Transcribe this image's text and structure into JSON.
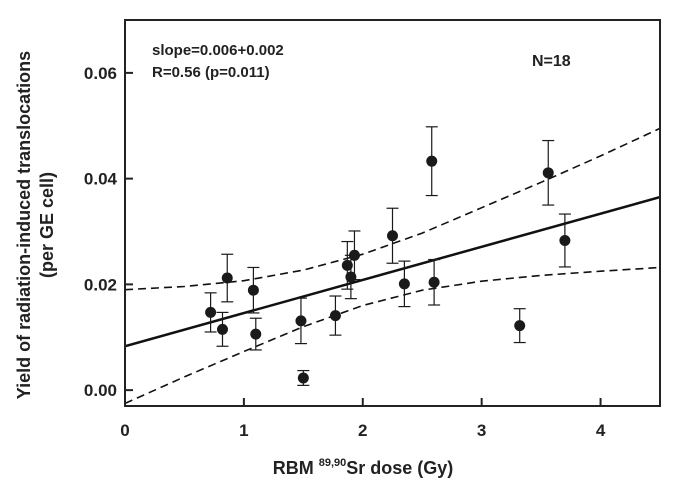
{
  "chart_data": {
    "type": "scatter",
    "xlabel": {
      "prefix": "RBM ",
      "superscript": "89,90",
      "suffix": "Sr dose (Gy)"
    },
    "ylabel": {
      "line1": "Yield of radiation-induced translocations",
      "line2": "(per GE cell)"
    },
    "xlim": [
      0,
      4.5
    ],
    "ylim": [
      -0.003,
      0.07
    ],
    "xticks": [
      0,
      1,
      2,
      3,
      4
    ],
    "xtick_labels": [
      "0",
      "1",
      "2",
      "3",
      "4"
    ],
    "yticks": [
      0.0,
      0.02,
      0.04,
      0.06
    ],
    "ytick_labels": [
      "0.00",
      "0.02",
      "0.04",
      "0.06"
    ],
    "annotations": {
      "slope": "slope=0.006+0.002",
      "r": "R=0.56 (p=0.011)",
      "n": "N=18"
    },
    "points": [
      {
        "x": 0.72,
        "y": 0.0147,
        "err": 0.0037
      },
      {
        "x": 0.82,
        "y": 0.0115,
        "err": 0.0032
      },
      {
        "x": 0.86,
        "y": 0.0212,
        "err": 0.0045
      },
      {
        "x": 1.08,
        "y": 0.0189,
        "err": 0.0043
      },
      {
        "x": 1.1,
        "y": 0.0106,
        "err": 0.003
      },
      {
        "x": 1.48,
        "y": 0.0131,
        "err": 0.0043
      },
      {
        "x": 1.5,
        "y": 0.0023,
        "err": 0.0014
      },
      {
        "x": 1.77,
        "y": 0.0141,
        "err": 0.0037
      },
      {
        "x": 1.87,
        "y": 0.0236,
        "err": 0.0045
      },
      {
        "x": 1.9,
        "y": 0.0214,
        "err": 0.0041
      },
      {
        "x": 1.93,
        "y": 0.0255,
        "err": 0.0046
      },
      {
        "x": 2.25,
        "y": 0.0292,
        "err": 0.0052
      },
      {
        "x": 2.35,
        "y": 0.0201,
        "err": 0.0043
      },
      {
        "x": 2.58,
        "y": 0.0433,
        "err": 0.0065
      },
      {
        "x": 2.6,
        "y": 0.0204,
        "err": 0.0043
      },
      {
        "x": 3.32,
        "y": 0.0122,
        "err": 0.0032
      },
      {
        "x": 3.56,
        "y": 0.0411,
        "err": 0.0061
      },
      {
        "x": 3.7,
        "y": 0.0283,
        "err": 0.005
      }
    ],
    "fit_line": {
      "x": [
        0,
        4.5
      ],
      "y": [
        0.0083,
        0.0365
      ]
    },
    "confidence_upper": {
      "x": [
        0,
        0.5,
        1,
        1.5,
        2,
        2.5,
        3,
        3.5,
        4,
        4.5
      ],
      "y": [
        0.019,
        0.0196,
        0.0207,
        0.0227,
        0.0257,
        0.0297,
        0.0345,
        0.0393,
        0.0443,
        0.0495
      ]
    },
    "confidence_lower": {
      "x": [
        0,
        0.5,
        1,
        1.5,
        2,
        2.5,
        3,
        3.5,
        4,
        4.5
      ],
      "y": [
        -0.0025,
        0.0025,
        0.0073,
        0.012,
        0.016,
        0.0189,
        0.0206,
        0.0217,
        0.0225,
        0.0232
      ]
    },
    "grid": false,
    "colors": {
      "axis": "#222222",
      "marker": "#1a1a1a",
      "line": "#111111"
    }
  }
}
